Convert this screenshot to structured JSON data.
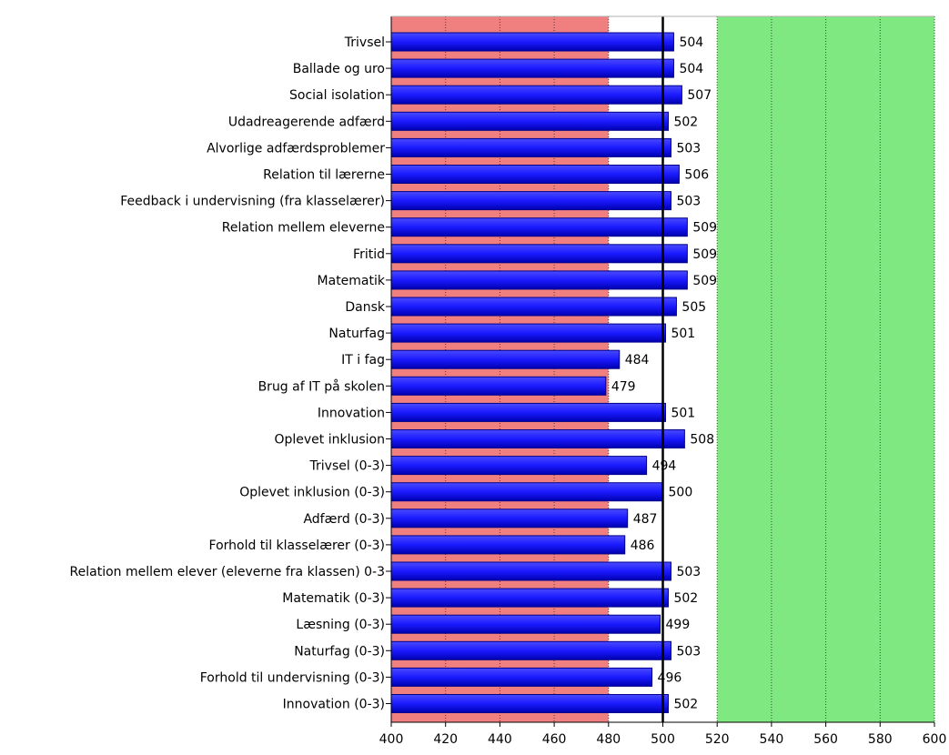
{
  "chart_data": {
    "type": "bar",
    "orientation": "horizontal",
    "title": "",
    "xlabel": "",
    "ylabel": "",
    "xlim": [
      400,
      600
    ],
    "x_ticks": [
      400,
      420,
      440,
      460,
      480,
      500,
      520,
      540,
      560,
      580,
      600
    ],
    "reference_line": 500,
    "bands": [
      {
        "from": 400,
        "to": 480,
        "color": "#f08080"
      },
      {
        "from": 520,
        "to": 600,
        "color": "#80e880"
      }
    ],
    "grid": "vertical dotted",
    "bar_color": "#1a1aff",
    "categories": [
      "Trivsel",
      "Ballade og uro",
      "Social isolation",
      "Udadreagerende adfærd",
      "Alvorlige adfærdsproblemer",
      "Relation til lærerne",
      "Feedback i undervisning (fra klasselærer)",
      "Relation mellem eleverne",
      "Fritid",
      "Matematik",
      "Dansk",
      "Naturfag",
      "IT i fag",
      "Brug af IT på skolen",
      "Innovation",
      "Oplevet inklusion",
      "Trivsel (0-3)",
      "Oplevet inklusion (0-3)",
      "Adfærd (0-3)",
      "Forhold til klasselærer (0-3)",
      "Relation mellem elever (eleverne fra klassen) 0-3",
      "Matematik (0-3)",
      "Læsning (0-3)",
      "Naturfag (0-3)",
      "Forhold til undervisning (0-3)",
      "Innovation (0-3)"
    ],
    "values": [
      504,
      504,
      507,
      502,
      503,
      506,
      503,
      509,
      509,
      509,
      505,
      501,
      484,
      479,
      501,
      508,
      494,
      500,
      487,
      486,
      503,
      502,
      499,
      503,
      496,
      502
    ]
  }
}
